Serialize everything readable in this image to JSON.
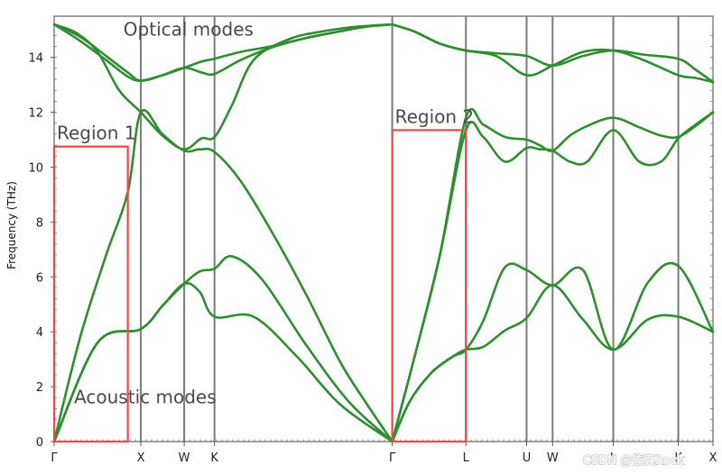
{
  "chart_data": {
    "type": "line",
    "title": "",
    "xlabel": "",
    "ylabel": "Frequency (THz)",
    "ylim": [
      0,
      15.5
    ],
    "yticks": [
      0,
      2,
      4,
      6,
      8,
      10,
      12,
      14
    ],
    "grid": false,
    "x_ticks": [
      {
        "label": "Γ",
        "pos": 0
      },
      {
        "label": "X",
        "pos": 1
      },
      {
        "label": "W",
        "pos": 1.5
      },
      {
        "label": "K",
        "pos": 1.85
      },
      {
        "label": "Γ",
        "pos": 3.9
      },
      {
        "label": "L",
        "pos": 4.75
      },
      {
        "label": "U",
        "pos": 5.45
      },
      {
        "label": "W",
        "pos": 5.75
      },
      {
        "label": "L",
        "pos": 6.45
      },
      {
        "label": "K",
        "pos": 7.2
      },
      {
        "label": "X",
        "pos": 7.6
      }
    ],
    "xlim": [
      0,
      7.6
    ],
    "series": [
      {
        "x": [
          0,
          0.5,
          1,
          1.25,
          1.5,
          1.68,
          1.85,
          2.3,
          2.8,
          3.3,
          3.9
        ],
        "y": [
          0,
          3.6,
          4.1,
          4.95,
          5.75,
          5.45,
          4.55,
          4.55,
          3.1,
          1.35,
          0
        ]
      },
      {
        "x": [
          0,
          0.5,
          1,
          1.25,
          1.5,
          1.68,
          1.85,
          2.05,
          2.4,
          2.9,
          3.4,
          3.9
        ],
        "y": [
          0,
          3.6,
          4.1,
          4.95,
          5.75,
          6.2,
          6.3,
          6.75,
          5.9,
          3.55,
          1.45,
          0
        ]
      },
      {
        "x": [
          0,
          0.3,
          0.6,
          0.85,
          1,
          1.25,
          1.5,
          1.68,
          1.85,
          2.15,
          2.5,
          2.9,
          3.3,
          3.6,
          3.9
        ],
        "y": [
          0,
          3.8,
          6.8,
          9.1,
          12.0,
          11.2,
          10.6,
          10.65,
          10.55,
          9.5,
          7.7,
          5.4,
          2.9,
          1.4,
          0
        ]
      },
      {
        "x": [
          0,
          0.25,
          0.5,
          0.75,
          1,
          1.25,
          1.5,
          1.7,
          1.85,
          2.05,
          2.3,
          2.7,
          3.1,
          3.5,
          3.9
        ],
        "y": [
          15.2,
          14.9,
          14.2,
          12.8,
          12.0,
          11.15,
          10.65,
          11.05,
          11.1,
          12.25,
          13.9,
          14.65,
          14.95,
          15.12,
          15.2
        ]
      },
      {
        "x": [
          0,
          0.3,
          0.6,
          0.85,
          1,
          1.25,
          1.5,
          1.7,
          1.85,
          2.15,
          2.5,
          2.9,
          3.3,
          3.6,
          3.9
        ],
        "y": [
          15.2,
          14.6,
          13.9,
          13.3,
          13.15,
          13.35,
          13.62,
          13.45,
          13.4,
          13.9,
          14.35,
          14.7,
          14.95,
          15.12,
          15.2
        ]
      },
      {
        "x": [
          0,
          0.3,
          0.6,
          0.85,
          1,
          1.25,
          1.5,
          1.7,
          1.85,
          2.15,
          2.5,
          2.9,
          3.3,
          3.6,
          3.9
        ],
        "y": [
          15.2,
          14.75,
          14.05,
          13.45,
          13.15,
          13.35,
          13.62,
          13.85,
          13.95,
          14.2,
          14.4,
          14.7,
          14.95,
          15.12,
          15.2
        ]
      },
      {
        "x": [
          3.9,
          4.1,
          4.35,
          4.6,
          4.75,
          4.95,
          5.2,
          5.45,
          5.75,
          6.1,
          6.45,
          6.85,
          7.2,
          7.6
        ],
        "y": [
          0,
          1.45,
          2.5,
          3.1,
          3.35,
          3.45,
          4.05,
          4.5,
          5.7,
          4.45,
          3.35,
          4.45,
          4.55,
          4.0
        ]
      },
      {
        "x": [
          3.9,
          4.1,
          4.35,
          4.6,
          4.75,
          4.95,
          5.2,
          5.45,
          5.75,
          6.1,
          6.45,
          6.85,
          7.2,
          7.6
        ],
        "y": [
          0,
          1.45,
          2.5,
          3.1,
          3.35,
          4.4,
          6.35,
          6.25,
          5.7,
          6.25,
          3.35,
          5.8,
          6.4,
          4.0
        ]
      },
      {
        "x": [
          3.9,
          4.15,
          4.45,
          4.75,
          4.95,
          5.2,
          5.45,
          5.6,
          5.75,
          5.95,
          6.15,
          6.45,
          6.75,
          7.0,
          7.2,
          7.4,
          7.6
        ],
        "y": [
          0,
          3.0,
          6.8,
          11.35,
          11.1,
          10.2,
          10.7,
          10.65,
          10.6,
          10.2,
          10.2,
          11.35,
          10.2,
          10.2,
          11.05,
          11.55,
          12.0
        ]
      },
      {
        "x": [
          3.9,
          4.15,
          4.45,
          4.75,
          4.95,
          5.2,
          5.45,
          5.6,
          5.75,
          5.95,
          6.15,
          6.45,
          6.75,
          7.0,
          7.2,
          7.4,
          7.6
        ],
        "y": [
          0,
          3.0,
          6.8,
          11.8,
          11.55,
          11.1,
          11.0,
          10.8,
          10.6,
          11.15,
          11.5,
          11.8,
          11.45,
          11.15,
          11.1,
          11.5,
          12.0
        ]
      },
      {
        "x": [
          3.9,
          4.15,
          4.45,
          4.75,
          5.1,
          5.45,
          5.75,
          6.1,
          6.45,
          6.8,
          7.2,
          7.4,
          7.6
        ],
        "y": [
          15.2,
          14.95,
          14.5,
          14.25,
          14.15,
          14.05,
          13.7,
          14.05,
          14.25,
          14.1,
          13.95,
          13.55,
          13.1
        ]
      },
      {
        "x": [
          3.9,
          4.15,
          4.45,
          4.75,
          5.1,
          5.45,
          5.75,
          6.1,
          6.45,
          6.8,
          7.2,
          7.4,
          7.6
        ],
        "y": [
          15.2,
          14.95,
          14.5,
          14.25,
          14.05,
          13.35,
          13.7,
          14.2,
          14.25,
          13.9,
          13.35,
          13.25,
          13.1
        ]
      }
    ],
    "regions": [
      {
        "label": "Region 1",
        "x": [
          0,
          0.85
        ],
        "y": [
          0,
          10.75
        ]
      },
      {
        "label": "Region 2",
        "x": [
          3.9,
          4.75
        ],
        "y": [
          0,
          11.35
        ]
      }
    ],
    "annotations": [
      {
        "text": "Optical modes",
        "x": 1.55,
        "y": 14.8
      },
      {
        "text": "Acoustic modes",
        "x": 1.05,
        "y": 1.4
      }
    ],
    "colors": {
      "bands": "#2f8f2f",
      "regions": "#f04747",
      "axis": "#6f6f6f"
    }
  },
  "watermark": "CSDN @仿真Rock"
}
